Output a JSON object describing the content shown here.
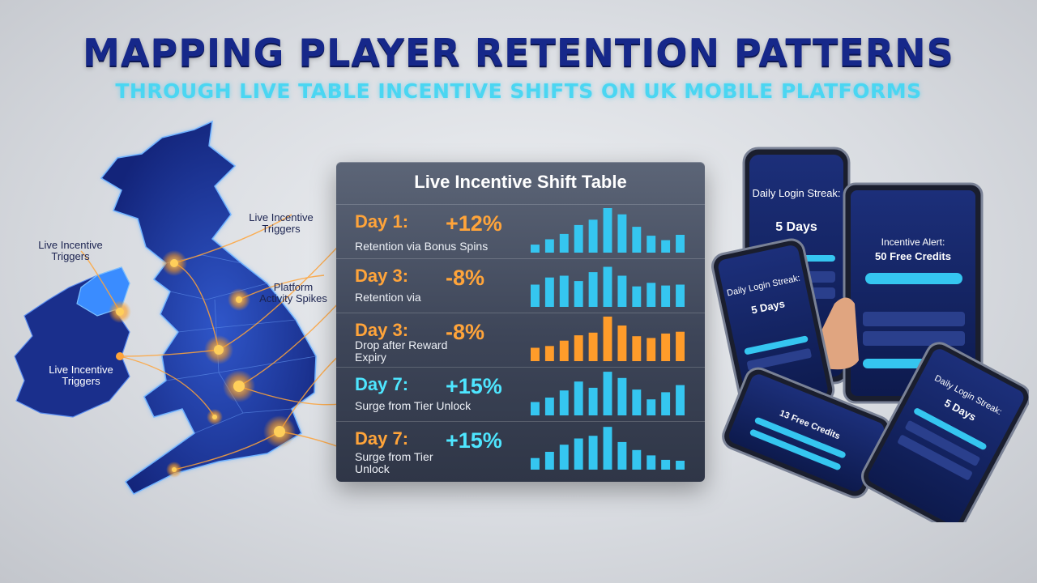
{
  "header": {
    "title": "MAPPING PLAYER RETENTION PATTERNS",
    "subtitle": "THROUGH LIVE TABLE INCENTIVE SHIFTS ON UK MOBILE PLATFORMS"
  },
  "map": {
    "labels": {
      "top_right": "Live Incentive Triggers",
      "left": "Live Incentive Triggers",
      "bottom_left": "Live Incentive Triggers",
      "right": "Platform Activity Spikes"
    }
  },
  "table": {
    "title": "Live Incentive Shift Table",
    "rows": [
      {
        "day": "Day 1:",
        "desc": "Retention via Bonus Spins",
        "delta": "+12%",
        "color": "#ffa43a",
        "bar_color": "#35c6f0"
      },
      {
        "day": "Day 3:",
        "desc": "Retention via",
        "delta": "-8%",
        "color": "#ffa43a",
        "bar_color": "#35c6f0"
      },
      {
        "day": "Day 3:",
        "desc": "Drop after Reward Expiry",
        "delta": "-8%",
        "color": "#ffa43a",
        "bar_color": "#ff9c2a"
      },
      {
        "day": "Day 7:",
        "desc": "Surge from Tier Unlock",
        "delta": "+15%",
        "color": "#4ee6ff",
        "bar_color": "#35c6f0"
      },
      {
        "day": "Day 7:",
        "desc": "Surge from Tier Unlock",
        "delta": "+15%",
        "color": "#4ee6ff",
        "bar_color": "#35c6f0"
      }
    ],
    "bar_levels": [
      [
        0.18,
        0.3,
        0.42,
        0.62,
        0.74,
        1.0,
        0.86,
        0.58,
        0.38,
        0.28,
        0.4
      ],
      [
        0.5,
        0.66,
        0.7,
        0.58,
        0.78,
        0.9,
        0.7,
        0.46,
        0.54,
        0.48,
        0.5
      ],
      [
        0.3,
        0.34,
        0.46,
        0.58,
        0.64,
        1.0,
        0.8,
        0.56,
        0.52,
        0.62,
        0.66
      ],
      [
        0.3,
        0.4,
        0.56,
        0.76,
        0.62,
        0.98,
        0.84,
        0.58,
        0.36,
        0.52,
        0.68
      ],
      [
        0.26,
        0.4,
        0.56,
        0.7,
        0.76,
        0.96,
        0.62,
        0.44,
        0.32,
        0.22,
        0.2
      ]
    ]
  },
  "devices": {
    "phone_top": {
      "title": "Daily Login Streak:",
      "value": "5 Days"
    },
    "tablet": {
      "title": "Incentive Alert:",
      "value": "50 Free Credits"
    },
    "phone_mid": {
      "title": "Daily Login Streak:",
      "value": "5 Days"
    },
    "phone_low": {
      "value": "13 Free Credits"
    },
    "phone_bottom": {
      "title": "Daily Login Streak:",
      "value": "5 Days"
    }
  }
}
